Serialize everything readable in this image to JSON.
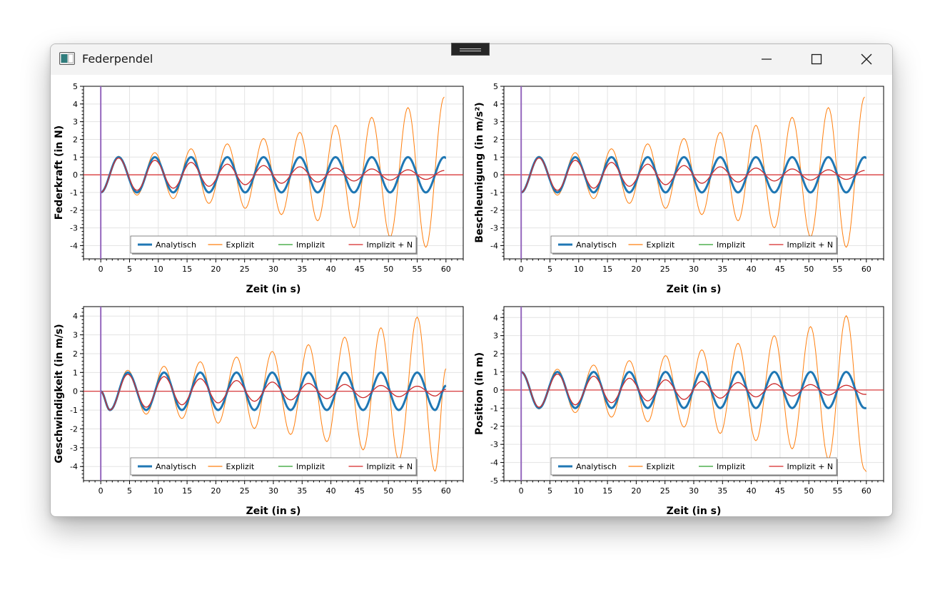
{
  "window": {
    "title": "Federpendel",
    "icon": "app-window-icon",
    "controls": {
      "minimize": "minimize-icon",
      "maximize": "maximize-icon",
      "close": "close-icon"
    }
  },
  "colors": {
    "analytisch": "#1f77b4",
    "explizit": "#ff7f0e",
    "implizit": "#2ca02c",
    "implizit_n": "#d62728",
    "time_marker": "#9467bd"
  },
  "chart_data": [
    {
      "type": "line",
      "ylabel": "Federkraft (in N)",
      "xlabel": "Zeit (in s)",
      "xlim": [
        -3,
        63
      ],
      "ylim": [
        -4.75,
        5
      ],
      "xticks": [
        0,
        5,
        10,
        15,
        20,
        25,
        30,
        35,
        40,
        45,
        50,
        55,
        60
      ],
      "yticks": [
        -4,
        -3,
        -2,
        -1,
        0,
        1,
        2,
        3,
        4,
        5
      ],
      "grid": true,
      "legend_position": "bottom-center",
      "time_marker_x": 0,
      "series": [
        {
          "name": "Analytisch",
          "x": [
            0,
            3.1,
            6.3,
            9.4,
            12.6,
            15.7,
            18.8,
            22.0,
            25.1,
            28.3,
            31.4,
            34.6,
            37.7,
            40.8,
            44.0,
            47.1,
            50.3,
            53.4,
            56.5,
            59.7,
            60
          ],
          "values": [
            -1,
            1,
            -1,
            1,
            -1,
            1,
            -1,
            1,
            -1,
            1,
            -1,
            1,
            -1,
            1,
            -1,
            1,
            -1,
            1,
            -1,
            1,
            0.95
          ]
        },
        {
          "name": "Explizit",
          "x": [
            0,
            3.1,
            6.3,
            9.4,
            12.6,
            15.7,
            18.8,
            22.0,
            25.1,
            28.3,
            31.4,
            34.6,
            37.7,
            40.8,
            44.0,
            47.1,
            50.3,
            53.4,
            56.5,
            59.7
          ],
          "values": [
            -1,
            1.05,
            -1.15,
            1.25,
            -1.35,
            1.47,
            -1.62,
            1.75,
            -1.9,
            2.05,
            -2.25,
            2.4,
            -2.6,
            2.8,
            -3.0,
            3.25,
            -3.5,
            3.8,
            -4.1,
            4.4
          ]
        },
        {
          "name": "Implizit",
          "x": [
            0,
            3.1,
            6.3,
            9.4,
            12.6,
            15.7,
            18.8,
            22.0,
            25.1,
            28.3,
            31.4,
            34.6,
            37.7,
            40.8,
            44.0,
            47.1,
            50.3,
            53.4,
            56.5,
            59.7
          ],
          "values": [
            -1,
            0.95,
            -0.88,
            0.82,
            -0.76,
            0.7,
            -0.65,
            0.6,
            -0.56,
            0.52,
            -0.48,
            0.45,
            -0.41,
            0.38,
            -0.35,
            0.33,
            -0.3,
            0.28,
            -0.26,
            0.24
          ]
        },
        {
          "name": "Implizit + N",
          "x": [
            0,
            3.1,
            6.3,
            9.4,
            12.6,
            15.7,
            18.8,
            22.0,
            25.1,
            28.3,
            31.4,
            34.6,
            37.7,
            40.8,
            44.0,
            47.1,
            50.3,
            53.4,
            56.5,
            59.7
          ],
          "values": [
            -1,
            0.95,
            -0.88,
            0.82,
            -0.76,
            0.7,
            -0.65,
            0.6,
            -0.56,
            0.52,
            -0.48,
            0.45,
            -0.41,
            0.38,
            -0.35,
            0.33,
            -0.3,
            0.28,
            -0.26,
            0.24
          ]
        }
      ]
    },
    {
      "type": "line",
      "ylabel": "Beschleunigung (in m/s²)",
      "xlabel": "Zeit (in s)",
      "xlim": [
        -3,
        63
      ],
      "ylim": [
        -4.75,
        5
      ],
      "xticks": [
        0,
        5,
        10,
        15,
        20,
        25,
        30,
        35,
        40,
        45,
        50,
        55,
        60
      ],
      "yticks": [
        -4,
        -3,
        -2,
        -1,
        0,
        1,
        2,
        3,
        4,
        5
      ],
      "grid": true,
      "legend_position": "bottom-center",
      "time_marker_x": 0,
      "series": [
        {
          "name": "Analytisch",
          "x": [
            0,
            3.1,
            6.3,
            9.4,
            12.6,
            15.7,
            18.8,
            22.0,
            25.1,
            28.3,
            31.4,
            34.6,
            37.7,
            40.8,
            44.0,
            47.1,
            50.3,
            53.4,
            56.5,
            59.7,
            60
          ],
          "values": [
            -1,
            1,
            -1,
            1,
            -1,
            1,
            -1,
            1,
            -1,
            1,
            -1,
            1,
            -1,
            1,
            -1,
            1,
            -1,
            1,
            -1,
            1,
            0.95
          ]
        },
        {
          "name": "Explizit",
          "x": [
            0,
            3.1,
            6.3,
            9.4,
            12.6,
            15.7,
            18.8,
            22.0,
            25.1,
            28.3,
            31.4,
            34.6,
            37.7,
            40.8,
            44.0,
            47.1,
            50.3,
            53.4,
            56.5,
            59.7
          ],
          "values": [
            -1,
            1.05,
            -1.15,
            1.25,
            -1.35,
            1.47,
            -1.62,
            1.75,
            -1.9,
            2.05,
            -2.25,
            2.4,
            -2.6,
            2.8,
            -3.0,
            3.25,
            -3.5,
            3.8,
            -4.1,
            4.4
          ]
        },
        {
          "name": "Implizit",
          "x": [
            0,
            3.1,
            6.3,
            9.4,
            12.6,
            15.7,
            18.8,
            22.0,
            25.1,
            28.3,
            31.4,
            34.6,
            37.7,
            40.8,
            44.0,
            47.1,
            50.3,
            53.4,
            56.5,
            59.7
          ],
          "values": [
            -1,
            0.95,
            -0.88,
            0.82,
            -0.76,
            0.7,
            -0.65,
            0.6,
            -0.56,
            0.52,
            -0.48,
            0.45,
            -0.41,
            0.38,
            -0.35,
            0.33,
            -0.3,
            0.28,
            -0.26,
            0.24
          ]
        },
        {
          "name": "Implizit + N",
          "x": [
            0,
            3.1,
            6.3,
            9.4,
            12.6,
            15.7,
            18.8,
            22.0,
            25.1,
            28.3,
            31.4,
            34.6,
            37.7,
            40.8,
            44.0,
            47.1,
            50.3,
            53.4,
            56.5,
            59.7
          ],
          "values": [
            -1,
            0.95,
            -0.88,
            0.82,
            -0.76,
            0.7,
            -0.65,
            0.6,
            -0.56,
            0.52,
            -0.48,
            0.45,
            -0.41,
            0.38,
            -0.35,
            0.33,
            -0.3,
            0.28,
            -0.26,
            0.24
          ]
        }
      ]
    },
    {
      "type": "line",
      "ylabel": "Geschwindigkeit (in m/s)",
      "xlabel": "Zeit (in s)",
      "xlim": [
        -3,
        63
      ],
      "ylim": [
        -4.75,
        4.5
      ],
      "xticks": [
        0,
        5,
        10,
        15,
        20,
        25,
        30,
        35,
        40,
        45,
        50,
        55,
        60
      ],
      "yticks": [
        -4,
        -3,
        -2,
        -1,
        0,
        1,
        2,
        3,
        4
      ],
      "grid": true,
      "legend_position": "bottom-center",
      "time_marker_x": 0,
      "series": [
        {
          "name": "Analytisch",
          "x": [
            0,
            1.6,
            4.7,
            7.9,
            11.0,
            14.1,
            17.3,
            20.4,
            23.6,
            26.7,
            29.8,
            33.0,
            36.1,
            39.3,
            42.4,
            45.6,
            48.7,
            51.8,
            55.0,
            58.1,
            60
          ],
          "values": [
            0,
            -1,
            1,
            -1,
            1,
            -1,
            1,
            -1,
            1,
            -1,
            1,
            -1,
            1,
            -1,
            1,
            -1,
            1,
            -1,
            1,
            -1,
            0.3
          ]
        },
        {
          "name": "Explizit",
          "x": [
            0,
            1.6,
            4.7,
            7.9,
            11.0,
            14.1,
            17.3,
            20.4,
            23.6,
            26.7,
            29.8,
            33.0,
            36.1,
            39.3,
            42.4,
            45.6,
            48.7,
            51.8,
            55.0,
            58.1,
            60
          ],
          "values": [
            0,
            -1,
            1.12,
            -1.22,
            1.33,
            -1.45,
            1.57,
            -1.7,
            1.82,
            -1.98,
            2.12,
            -2.3,
            2.48,
            -2.68,
            2.88,
            -3.12,
            3.38,
            -3.65,
            3.95,
            -4.25,
            1.2
          ]
        },
        {
          "name": "Implizit",
          "x": [
            0,
            1.6,
            4.7,
            7.9,
            11.0,
            14.1,
            17.3,
            20.4,
            23.6,
            26.7,
            29.8,
            33.0,
            36.1,
            39.3,
            42.4,
            45.6,
            48.7,
            51.8,
            55.0,
            58.1,
            60
          ],
          "values": [
            0,
            -1,
            0.9,
            -0.85,
            0.78,
            -0.72,
            0.67,
            -0.62,
            0.57,
            -0.53,
            0.49,
            -0.46,
            0.42,
            -0.39,
            0.36,
            -0.34,
            0.31,
            -0.29,
            0.27,
            -0.25,
            0.1
          ]
        },
        {
          "name": "Implizit + N",
          "x": [
            0,
            1.6,
            4.7,
            7.9,
            11.0,
            14.1,
            17.3,
            20.4,
            23.6,
            26.7,
            29.8,
            33.0,
            36.1,
            39.3,
            42.4,
            45.6,
            48.7,
            51.8,
            55.0,
            58.1,
            60
          ],
          "values": [
            0,
            -1,
            0.9,
            -0.85,
            0.78,
            -0.72,
            0.67,
            -0.62,
            0.57,
            -0.53,
            0.49,
            -0.46,
            0.42,
            -0.39,
            0.36,
            -0.34,
            0.31,
            -0.29,
            0.27,
            -0.25,
            0.1
          ]
        }
      ]
    },
    {
      "type": "line",
      "ylabel": "Position (in m)",
      "xlabel": "Zeit (in s)",
      "xlim": [
        -3,
        63
      ],
      "ylim": [
        -5,
        4.6
      ],
      "xticks": [
        0,
        5,
        10,
        15,
        20,
        25,
        30,
        35,
        40,
        45,
        50,
        55,
        60
      ],
      "yticks": [
        -5,
        -4,
        -3,
        -2,
        -1,
        0,
        1,
        2,
        3,
        4
      ],
      "grid": true,
      "legend_position": "bottom-center",
      "time_marker_x": 0,
      "series": [
        {
          "name": "Analytisch",
          "x": [
            0,
            3.1,
            6.3,
            9.4,
            12.6,
            15.7,
            18.8,
            22.0,
            25.1,
            28.3,
            31.4,
            34.6,
            37.7,
            40.8,
            44.0,
            47.1,
            50.3,
            53.4,
            56.5,
            59.7,
            60
          ],
          "values": [
            1,
            -1,
            1,
            -1,
            1,
            -1,
            1,
            -1,
            1,
            -1,
            1,
            -1,
            1,
            -1,
            1,
            -1,
            1,
            -1,
            1,
            -1,
            -1
          ]
        },
        {
          "name": "Explizit",
          "x": [
            0,
            3.1,
            6.3,
            9.4,
            12.6,
            15.7,
            18.8,
            22.0,
            25.1,
            28.3,
            31.4,
            34.6,
            37.7,
            40.8,
            44.0,
            47.1,
            50.3,
            53.4,
            56.5,
            59.7,
            60
          ],
          "values": [
            1,
            -1.05,
            1.15,
            -1.25,
            1.38,
            -1.5,
            1.62,
            -1.75,
            1.9,
            -2.05,
            2.22,
            -2.4,
            2.58,
            -2.8,
            3.0,
            -3.25,
            3.5,
            -3.8,
            4.1,
            -4.4,
            -4.5
          ]
        },
        {
          "name": "Implizit",
          "x": [
            0,
            3.1,
            6.3,
            9.4,
            12.6,
            15.7,
            18.8,
            22.0,
            25.1,
            28.3,
            31.4,
            34.6,
            37.7,
            40.8,
            44.0,
            47.1,
            50.3,
            53.4,
            56.5,
            59.7,
            60
          ],
          "values": [
            1,
            -0.95,
            0.88,
            -0.82,
            0.76,
            -0.7,
            0.65,
            -0.6,
            0.56,
            -0.52,
            0.48,
            -0.45,
            0.41,
            -0.38,
            0.35,
            -0.33,
            0.3,
            -0.28,
            0.26,
            -0.24,
            -0.24
          ]
        },
        {
          "name": "Implizit + N",
          "x": [
            0,
            3.1,
            6.3,
            9.4,
            12.6,
            15.7,
            18.8,
            22.0,
            25.1,
            28.3,
            31.4,
            34.6,
            37.7,
            40.8,
            44.0,
            47.1,
            50.3,
            53.4,
            56.5,
            59.7,
            60
          ],
          "values": [
            1,
            -0.95,
            0.88,
            -0.82,
            0.76,
            -0.7,
            0.65,
            -0.6,
            0.56,
            -0.52,
            0.48,
            -0.45,
            0.41,
            -0.38,
            0.35,
            -0.33,
            0.3,
            -0.28,
            0.26,
            -0.24,
            -0.24
          ]
        }
      ]
    }
  ]
}
